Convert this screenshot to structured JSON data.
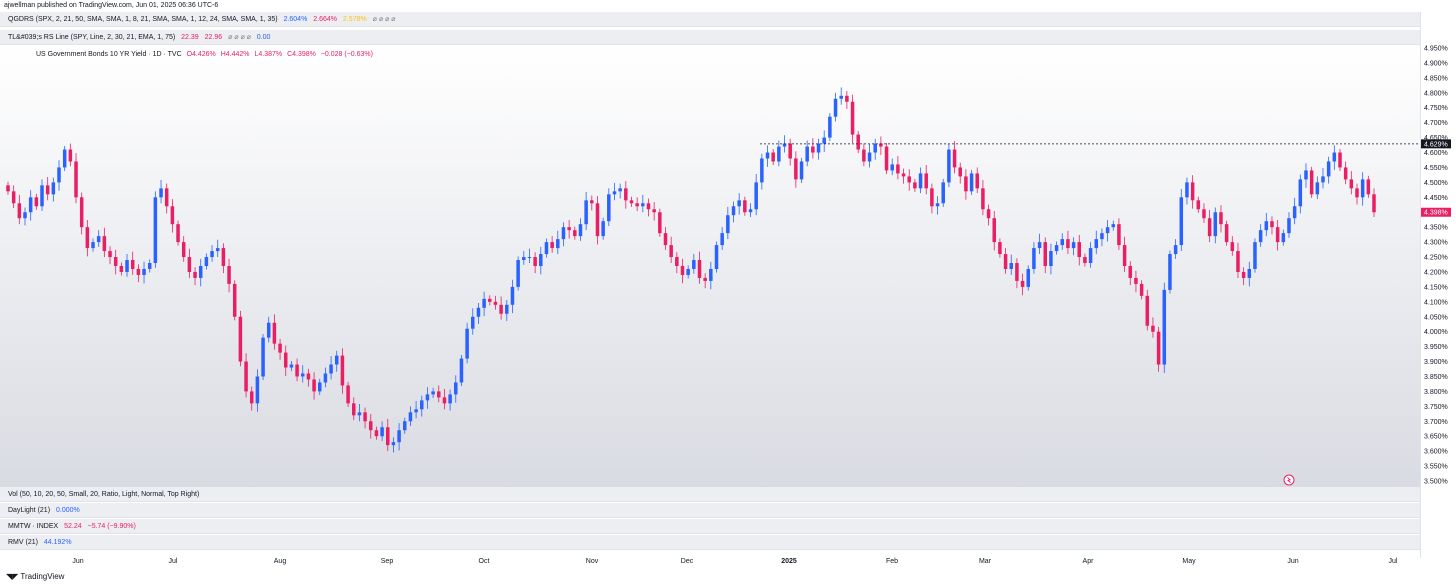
{
  "header": {
    "published_text": "ajwellman published on TradingView.com, Jun 01, 2025 06:36 UTC-6"
  },
  "indicators_top": [
    {
      "label": "QGDRS (SPX, 2, 21, 50, SMA, SMA, 1, 8, 21, SMA, SMA, 1, 12, 24, SMA, SMA, 1, 35)",
      "values": [
        "2.604%",
        "2.664%",
        "2.578%"
      ],
      "tail": "⌀ ⌀ ⌀ ⌀"
    },
    {
      "label": "TL&#039;s RS Line (SPY, Line, 2, 30, 21, EMA, 1, 75)",
      "values": [
        "22.39",
        "22.96"
      ],
      "tail": "⌀ ⌀ ⌀ ⌀",
      "extra": "0.00"
    }
  ],
  "legend": {
    "title": "US Government Bonds 10 YR Yield · 1D · TVC",
    "open": "O4.426%",
    "high": "H4.442%",
    "low": "L4.387%",
    "close": "C4.398%",
    "change": "−0.028 (−0.63%)"
  },
  "indicators_bottom": [
    {
      "label": "Vol (50, 10, 20, 50, Small, 20, Ratio, Light, Normal, Top Right)",
      "value": ""
    },
    {
      "label": "DayLight (21)",
      "value": "0.000%"
    },
    {
      "label": "MMTW · INDEX",
      "value": "52.24",
      "change": "−5.74 (−9.90%)"
    },
    {
      "label": "RMV (21)",
      "value": "44.192%"
    }
  ],
  "footer": {
    "brand": "TradingView"
  },
  "colors": {
    "up": "#2962ff",
    "down": "#e91e63",
    "background_top": "#ffffff",
    "background_bottom": "#d9dbe2"
  },
  "chart_data": {
    "type": "candlestick",
    "symbol": "US Government Bonds 10 YR Yield",
    "timeframe": "1D",
    "ylim": [
      3.5,
      4.95
    ],
    "yticks": [
      "4.950%",
      "4.900%",
      "4.850%",
      "4.800%",
      "4.750%",
      "4.700%",
      "4.650%",
      "4.600%",
      "4.550%",
      "4.500%",
      "4.450%",
      "4.400%",
      "4.350%",
      "4.300%",
      "4.250%",
      "4.200%",
      "4.150%",
      "4.100%",
      "4.050%",
      "4.000%",
      "3.950%",
      "3.900%",
      "3.850%",
      "3.800%",
      "3.750%",
      "3.700%",
      "3.650%",
      "3.600%",
      "3.550%",
      "3.500%"
    ],
    "xlabels": [
      "Jun",
      "Jul",
      "Aug",
      "Sep",
      "Oct",
      "Nov",
      "Dec",
      "2025",
      "Feb",
      "Mar",
      "Apr",
      "May",
      "Jun",
      "Jul"
    ],
    "price_labels": {
      "reference": "4.629%",
      "last": "4.398%"
    },
    "reference_line": 4.629,
    "closes": [
      4.47,
      4.43,
      4.38,
      4.4,
      4.45,
      4.42,
      4.49,
      4.46,
      4.5,
      4.55,
      4.61,
      4.57,
      4.45,
      4.35,
      4.28,
      4.3,
      4.32,
      4.27,
      4.25,
      4.22,
      4.2,
      4.24,
      4.21,
      4.19,
      4.21,
      4.23,
      4.45,
      4.48,
      4.42,
      4.36,
      4.3,
      4.25,
      4.2,
      4.18,
      4.22,
      4.25,
      4.27,
      4.28,
      4.22,
      4.16,
      4.05,
      3.9,
      3.8,
      3.76,
      3.85,
      3.98,
      4.03,
      3.96,
      3.93,
      3.88,
      3.89,
      3.85,
      3.86,
      3.84,
      3.8,
      3.83,
      3.86,
      3.89,
      3.92,
      3.82,
      3.76,
      3.72,
      3.73,
      3.7,
      3.67,
      3.65,
      3.68,
      3.62,
      3.63,
      3.67,
      3.7,
      3.73,
      3.74,
      3.77,
      3.79,
      3.8,
      3.78,
      3.76,
      3.79,
      3.83,
      3.91,
      4.01,
      4.05,
      4.08,
      4.11,
      4.1,
      4.09,
      4.06,
      4.09,
      4.15,
      4.24,
      4.25,
      4.25,
      4.22,
      4.26,
      4.3,
      4.28,
      4.31,
      4.35,
      4.34,
      4.32,
      4.36,
      4.44,
      4.43,
      4.32,
      4.37,
      4.46,
      4.47,
      4.48,
      4.44,
      4.43,
      4.42,
      4.43,
      4.41,
      4.4,
      4.33,
      4.29,
      4.25,
      4.22,
      4.19,
      4.21,
      4.24,
      4.18,
      4.17,
      4.21,
      4.29,
      4.33,
      4.39,
      4.42,
      4.44,
      4.4,
      4.41,
      4.5,
      4.58,
      4.6,
      4.57,
      4.62,
      4.63,
      4.58,
      4.51,
      4.57,
      4.62,
      4.6,
      4.63,
      4.65,
      4.72,
      4.78,
      4.79,
      4.77,
      4.66,
      4.61,
      4.57,
      4.6,
      4.63,
      4.62,
      4.54,
      4.56,
      4.53,
      4.52,
      4.5,
      4.48,
      4.53,
      4.48,
      4.42,
      4.43,
      4.5,
      4.61,
      4.55,
      4.52,
      4.47,
      4.53,
      4.48,
      4.41,
      4.38,
      4.3,
      4.26,
      4.21,
      4.23,
      4.17,
      4.15,
      4.21,
      4.28,
      4.3,
      4.22,
      4.27,
      4.29,
      4.31,
      4.28,
      4.3,
      4.25,
      4.23,
      4.28,
      4.31,
      4.33,
      4.35,
      4.36,
      4.29,
      4.22,
      4.18,
      4.16,
      4.12,
      4.02,
      4.0,
      3.89,
      4.14,
      4.26,
      4.29,
      4.45,
      4.5,
      4.44,
      4.41,
      4.38,
      4.32,
      4.4,
      4.36,
      4.3,
      4.27,
      4.2,
      4.18,
      4.21,
      4.3,
      4.34,
      4.37,
      4.35,
      4.3,
      4.33,
      4.38,
      4.42,
      4.51,
      4.54,
      4.46,
      4.5,
      4.52,
      4.57,
      4.6,
      4.55,
      4.51,
      4.48,
      4.45,
      4.51,
      4.46,
      4.4
    ]
  }
}
